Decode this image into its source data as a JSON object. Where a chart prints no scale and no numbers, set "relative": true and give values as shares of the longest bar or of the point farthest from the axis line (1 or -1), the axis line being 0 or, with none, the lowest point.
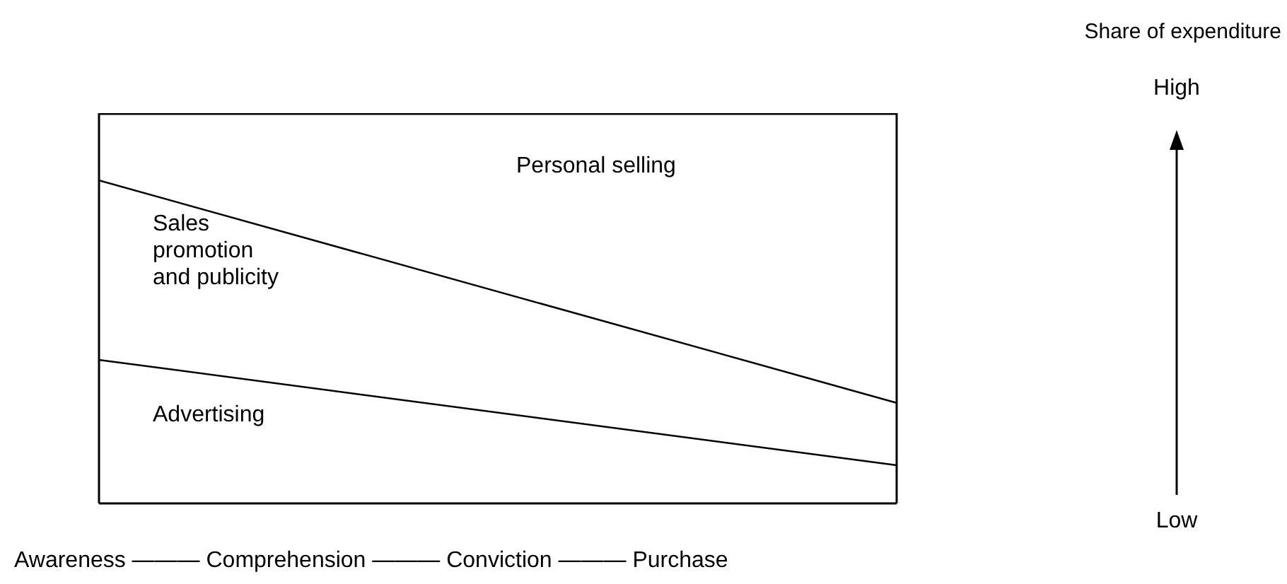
{
  "chart_data": {
    "type": "area",
    "stacked": true,
    "relative": true,
    "annotations": [
      "Awareness ——— Comprehension ——— Conviction ——— Purchase",
      "Share of expenditure",
      "High",
      "Low"
    ],
    "categories": [
      null,
      null
    ],
    "series": [
      {
        "name": "Advertising",
        "color": "#ffffff",
        "values": [
          0.37,
          0.1
        ]
      },
      {
        "name": "Sales promotion and publicity",
        "color": "#ffffff",
        "values": [
          0.46,
          0.16
        ]
      },
      {
        "name": "Personal selling",
        "color": "#ffffff",
        "values": [
          0.17,
          0.74
        ]
      }
    ]
  }
}
